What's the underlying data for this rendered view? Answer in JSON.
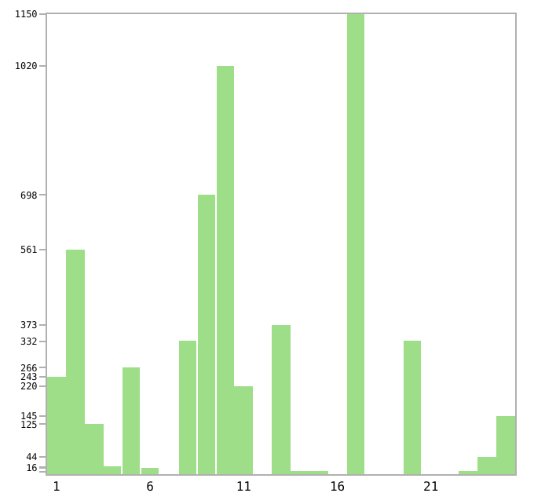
{
  "chart_data": {
    "type": "bar",
    "categories": [
      "1",
      null,
      null,
      null,
      null,
      "6",
      null,
      null,
      null,
      null,
      "11",
      null,
      null,
      null,
      null,
      "16",
      null,
      null,
      null,
      null,
      "21",
      null,
      null,
      null,
      null
    ],
    "values": [
      243,
      561,
      125,
      18,
      266,
      16,
      0,
      332,
      698,
      1020,
      220,
      0,
      373,
      6,
      6,
      0,
      1150,
      0,
      0,
      332,
      0,
      0,
      6,
      44,
      145
    ],
    "color": "#9ede88",
    "ylim": [
      0,
      1150
    ],
    "yticks": [
      {
        "value": 6,
        "label": null
      },
      16,
      {
        "value": 18,
        "label": null
      },
      44,
      125,
      145,
      220,
      243,
      266,
      332,
      373,
      561,
      698,
      1020,
      1150
    ]
  }
}
